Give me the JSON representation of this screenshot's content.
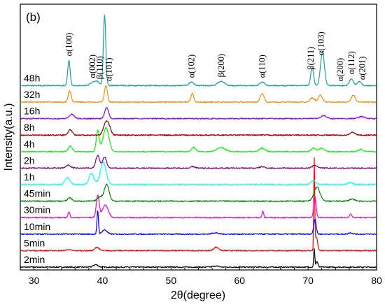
{
  "chart_data": {
    "type": "line",
    "panel_label": "(b)",
    "xlabel": "2θ(degree)",
    "ylabel": "Intensity(a.u.)",
    "xlim": [
      28,
      80
    ],
    "x_ticks": [
      30,
      40,
      50,
      60,
      70,
      80
    ],
    "grid": false,
    "series": [
      {
        "name": "2min",
        "color": "#000000",
        "baseline": 0,
        "peaks": [
          [
            39.0,
            3.5,
            0.5
          ],
          [
            70.9,
            26,
            0.12
          ],
          [
            71.3,
            8,
            0.2
          ],
          [
            56.5,
            1.5,
            0.6
          ]
        ]
      },
      {
        "name": "5min",
        "color": "#ff0000",
        "baseline": 1,
        "peaks": [
          [
            39.2,
            5,
            0.4
          ],
          [
            56.6,
            5,
            0.5
          ],
          [
            70.9,
            128,
            0.1
          ],
          [
            71.2,
            20,
            0.25
          ],
          [
            35.0,
            1.5,
            0.4
          ]
        ]
      },
      {
        "name": "10min",
        "color": "#0000ff",
        "baseline": 2,
        "peaks": [
          [
            39.3,
            34,
            0.15
          ],
          [
            40.3,
            6,
            0.5
          ],
          [
            56.4,
            2,
            0.6
          ],
          [
            71.0,
            22,
            0.25
          ],
          [
            76.2,
            2,
            0.4
          ]
        ]
      },
      {
        "name": "30min",
        "color": "#ff00cc",
        "baseline": 3,
        "peaks": [
          [
            35.1,
            8,
            0.2
          ],
          [
            39.3,
            32,
            0.3
          ],
          [
            40.4,
            18,
            0.6
          ],
          [
            63.4,
            10,
            0.15
          ],
          [
            71.0,
            30,
            0.25
          ],
          [
            76.2,
            6,
            0.2
          ]
        ]
      },
      {
        "name": "45min",
        "color": "#008000",
        "baseline": 4,
        "peaks": [
          [
            35.2,
            5,
            0.4
          ],
          [
            39.6,
            6,
            0.5
          ],
          [
            40.6,
            24,
            0.5
          ],
          [
            71.3,
            20,
            0.6
          ],
          [
            76.4,
            3,
            0.5
          ]
        ]
      },
      {
        "name": "1h",
        "color": "#00ffff",
        "baseline": 5,
        "peaks": [
          [
            34.9,
            10,
            0.5
          ],
          [
            38.4,
            16,
            0.5
          ],
          [
            40.1,
            32,
            0.6
          ],
          [
            70.8,
            6,
            0.5
          ],
          [
            76.2,
            3,
            0.5
          ]
        ]
      },
      {
        "name": "2h",
        "color": "#800080",
        "baseline": 6,
        "peaks": [
          [
            35.0,
            4,
            0.5
          ],
          [
            39.3,
            18,
            0.4
          ],
          [
            40.3,
            16,
            0.4
          ],
          [
            53.2,
            2,
            0.5
          ],
          [
            63.3,
            2,
            0.5
          ],
          [
            71.0,
            4,
            0.5
          ]
        ]
      },
      {
        "name": "4h",
        "color": "#00ff00",
        "baseline": 7,
        "peaks": [
          [
            35.3,
            8,
            0.4
          ],
          [
            39.3,
            30,
            0.3
          ],
          [
            40.5,
            34,
            0.6
          ],
          [
            53.3,
            6,
            0.4
          ],
          [
            57.3,
            6,
            0.8
          ],
          [
            63.3,
            5,
            0.6
          ],
          [
            70.8,
            5,
            0.5
          ],
          [
            72.0,
            5,
            0.5
          ],
          [
            77.7,
            3,
            0.5
          ]
        ]
      },
      {
        "name": "8h",
        "color": "#990000",
        "baseline": 8,
        "peaks": [
          [
            35.3,
            8,
            0.4
          ],
          [
            40.5,
            18,
            0.5
          ],
          [
            41.0,
            8,
            0.4
          ],
          [
            76.5,
            4,
            0.5
          ]
        ]
      },
      {
        "name": "16h",
        "color": "#9900ff",
        "baseline": 9,
        "peaks": [
          [
            35.5,
            6,
            0.5
          ],
          [
            40.6,
            16,
            0.4
          ],
          [
            72.3,
            4,
            0.6
          ],
          [
            77.8,
            3,
            0.6
          ]
        ]
      },
      {
        "name": "32h",
        "color": "#ff8c00",
        "baseline": 10,
        "peaks": [
          [
            35.2,
            16,
            0.3
          ],
          [
            40.5,
            24,
            0.3
          ],
          [
            53.1,
            12,
            0.3
          ],
          [
            63.3,
            12,
            0.4
          ],
          [
            70.6,
            6,
            0.5
          ],
          [
            71.8,
            10,
            0.4
          ],
          [
            76.6,
            10,
            0.4
          ]
        ]
      },
      {
        "name": "48h",
        "color": "#20a0a0",
        "baseline": 11,
        "peaks": [
          [
            35.1,
            36,
            0.25
          ],
          [
            38.5,
            4,
            0.5
          ],
          [
            39.2,
            6,
            0.5
          ],
          [
            40.3,
            100,
            0.25
          ],
          [
            53.0,
            5,
            0.5
          ],
          [
            57.3,
            6,
            0.7
          ],
          [
            63.3,
            5,
            0.5
          ],
          [
            70.6,
            26,
            0.3
          ],
          [
            72.1,
            48,
            0.4
          ],
          [
            76.3,
            10,
            0.4
          ],
          [
            77.5,
            6,
            0.4
          ]
        ]
      }
    ],
    "peak_annotations": [
      {
        "text": "α(100)",
        "x": 35.1
      },
      {
        "text": "α(002)",
        "x": 38.5
      },
      {
        "text": "β(110)",
        "x": 39.6
      },
      {
        "text": "α(101)",
        "x": 40.9
      },
      {
        "text": "α(102)",
        "x": 53.0
      },
      {
        "text": "β(200)",
        "x": 57.3
      },
      {
        "text": "α(110)",
        "x": 63.3
      },
      {
        "text": "β(211)",
        "x": 70.4
      },
      {
        "text": "α(103)",
        "x": 71.9
      },
      {
        "text": "α(200)",
        "x": 74.7
      },
      {
        "text": "α(112)",
        "x": 76.3
      },
      {
        "text": "α(201)",
        "x": 77.9
      }
    ]
  }
}
